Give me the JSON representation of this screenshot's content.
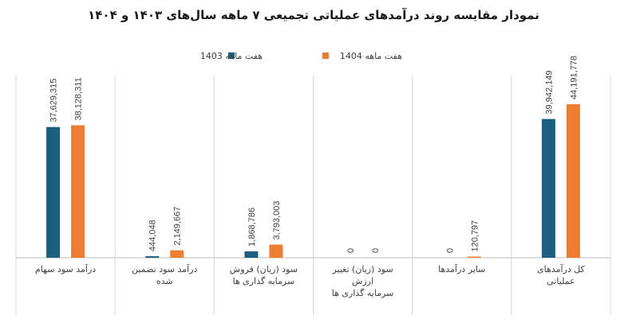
{
  "chart_data": {
    "type": "bar",
    "title": "نمودار مقایسه روند درآمدهای عملیاتی تجمیعی ۷ ماهه سال‌های ۱۴۰۳ و ۱۴۰۴",
    "categories": [
      "درآمد سود سهام",
      "درآمد سود تضمین شده",
      "سود (زیان) فروش سرمایه گذاری ها",
      "سود (زیان) تغییر ارزش سرمایه گذاری ها",
      "سایر درآمدها",
      "کل درآمدهای عملیاتی"
    ],
    "category_lines": [
      [
        "درآمد سود سهام"
      ],
      [
        "درآمد سود تضمین",
        "شده"
      ],
      [
        "سود (زیان) فروش",
        "سرمایه گذاری ها"
      ],
      [
        "سود (زیان) تغییر",
        "ارزش",
        "سرمایه گذاری ها"
      ],
      [
        "سایر درآمدها"
      ],
      [
        "کل درآمدهای",
        "عملیاتی"
      ]
    ],
    "series": [
      {
        "name": "هفت ماهه 1403",
        "color": "#1b5e7f",
        "values": [
          37629315,
          444048,
          1868786,
          0,
          0,
          39942149
        ],
        "labels": [
          "37,629,315",
          "444,048",
          "1,868,786",
          "0",
          "0",
          "39,942,149"
        ]
      },
      {
        "name": "هفت ماهه 1404",
        "color": "#ed7d31",
        "values": [
          38128311,
          2149667,
          3793003,
          0,
          120797,
          44191778
        ],
        "labels": [
          "38,128,311",
          "2,149,667",
          "3,793,003",
          "0",
          "120,797",
          "44,191,778"
        ]
      }
    ],
    "ylim": [
      0,
      44191778
    ],
    "grid": false,
    "legend_position": "top"
  }
}
